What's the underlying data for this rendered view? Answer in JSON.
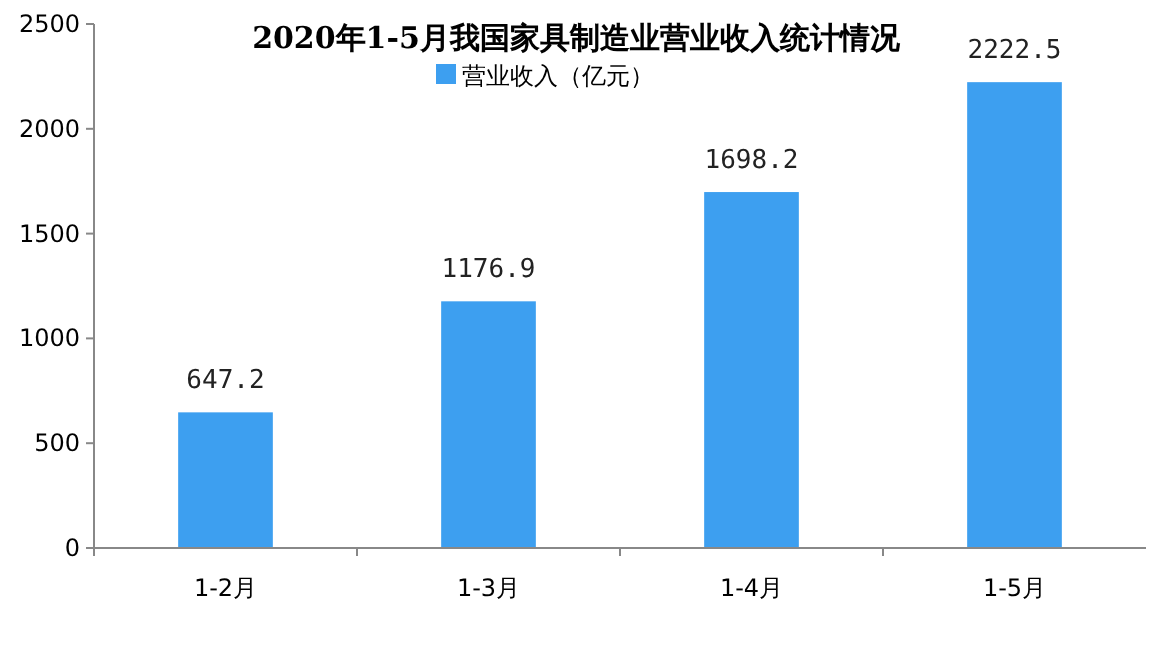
{
  "chart_data": {
    "type": "bar",
    "title": "2020年1-5月我国家具制造业营业收入统计情况",
    "categories": [
      "1-2月",
      "1-3月",
      "1-4月",
      "1-5月"
    ],
    "series": [
      {
        "name": "营业收入（亿元）",
        "color": "#3d9ff0",
        "values": [
          647.2,
          1176.9,
          1698.2,
          2222.5
        ]
      }
    ],
    "ylim": [
      0,
      2500
    ],
    "yticks": [
      0,
      500,
      1000,
      1500,
      2000,
      2500
    ],
    "data_labels": true,
    "legend": "top",
    "grid": false
  }
}
